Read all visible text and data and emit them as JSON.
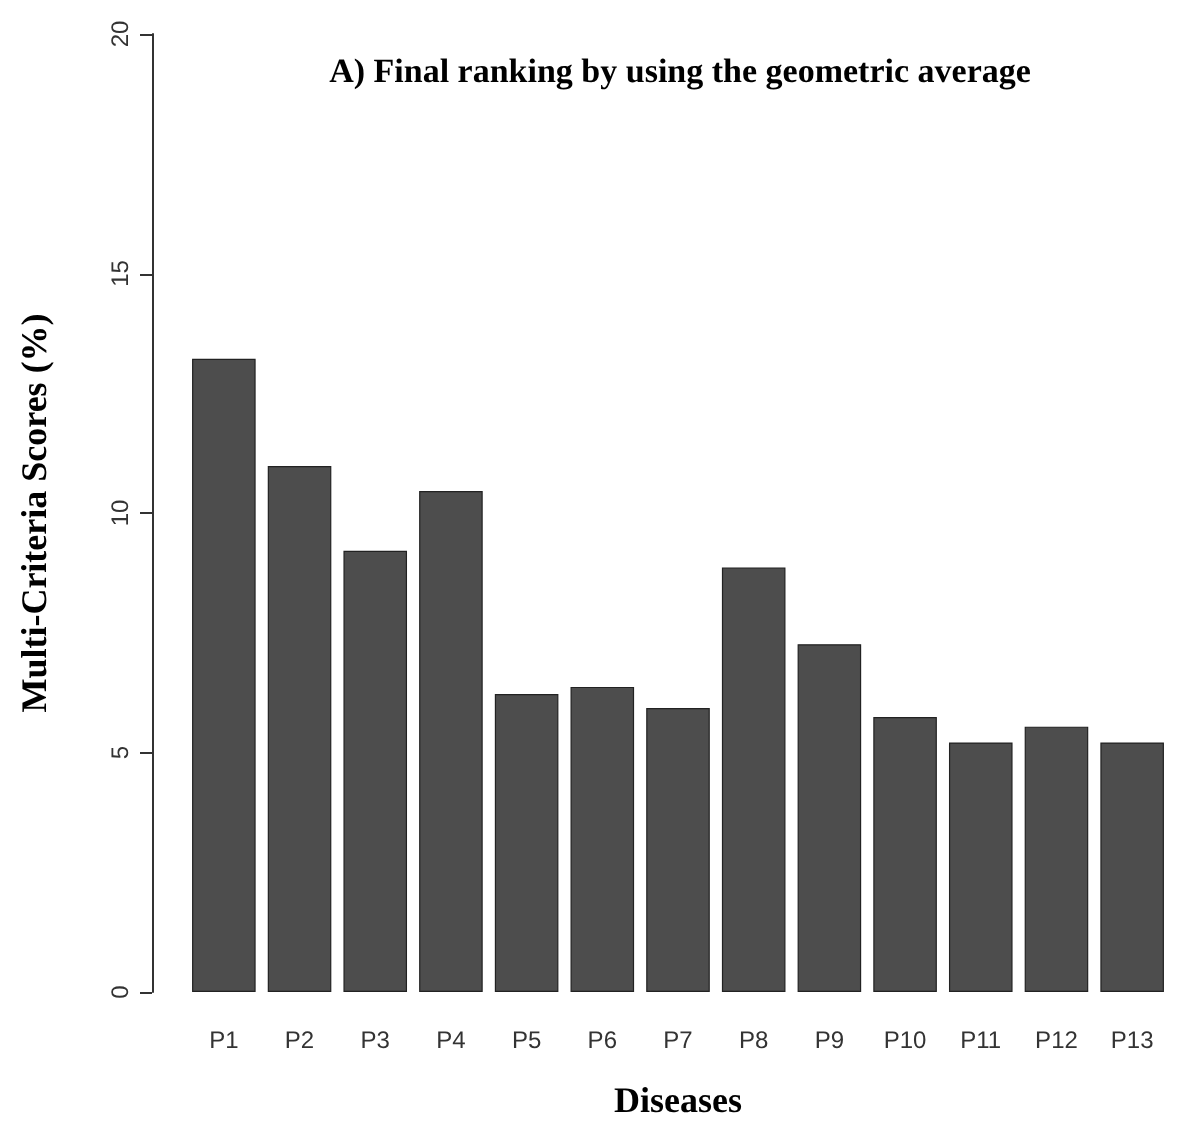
{
  "chart_data": {
    "type": "bar",
    "title": "A) Final ranking by using the geometric average",
    "xlabel": "Diseases",
    "ylabel": "Multi-Criteria Scores (%)",
    "categories": [
      "P1",
      "P2",
      "P3",
      "P4",
      "P5",
      "P6",
      "P7",
      "P8",
      "P9",
      "P10",
      "P11",
      "P12",
      "P13"
    ],
    "values": [
      13.22,
      10.98,
      9.21,
      10.46,
      6.22,
      6.37,
      5.93,
      8.86,
      7.26,
      5.74,
      5.21,
      5.54,
      5.21
    ],
    "color": "#4d4d4d",
    "ylim": [
      0,
      20
    ],
    "yticks": [
      0,
      5,
      10,
      15,
      20
    ],
    "grid": false
  }
}
